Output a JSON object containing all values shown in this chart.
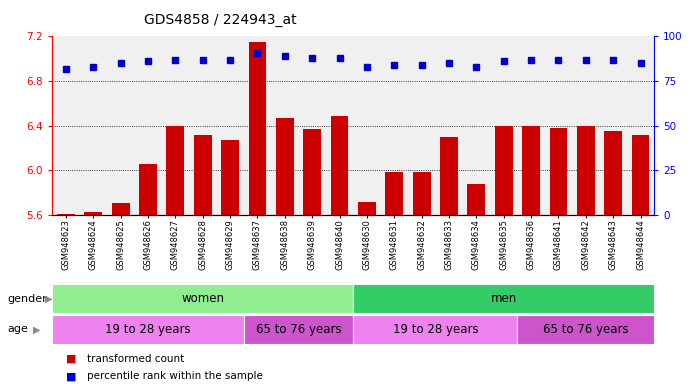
{
  "title": "GDS4858 / 224943_at",
  "samples": [
    "GSM948623",
    "GSM948624",
    "GSM948625",
    "GSM948626",
    "GSM948627",
    "GSM948628",
    "GSM948629",
    "GSM948637",
    "GSM948638",
    "GSM948639",
    "GSM948640",
    "GSM948630",
    "GSM948631",
    "GSM948632",
    "GSM948633",
    "GSM948634",
    "GSM948635",
    "GSM948636",
    "GSM948641",
    "GSM948642",
    "GSM948643",
    "GSM948644"
  ],
  "bar_values": [
    5.61,
    5.63,
    5.71,
    6.06,
    6.4,
    6.32,
    6.27,
    7.15,
    6.47,
    6.37,
    6.49,
    5.72,
    5.99,
    5.99,
    6.3,
    5.88,
    6.4,
    6.4,
    6.38,
    6.4,
    6.35,
    6.32
  ],
  "dot_values": [
    82,
    83,
    85,
    86,
    87,
    87,
    87,
    91,
    89,
    88,
    88,
    83,
    84,
    84,
    85,
    83,
    86,
    87,
    87,
    87,
    87,
    85
  ],
  "bar_color": "#cc0000",
  "dot_color": "#0000cc",
  "ylim_left": [
    5.6,
    7.2
  ],
  "ylim_right": [
    0,
    100
  ],
  "yticks_left": [
    5.6,
    6.0,
    6.4,
    6.8,
    7.2
  ],
  "yticks_right": [
    0,
    25,
    50,
    75,
    100
  ],
  "grid_values": [
    6.0,
    6.4,
    6.8
  ],
  "gender_groups": [
    {
      "label": "women",
      "start": 0,
      "end": 11,
      "color": "#90ee90"
    },
    {
      "label": "men",
      "start": 11,
      "end": 22,
      "color": "#33cc66"
    }
  ],
  "age_groups": [
    {
      "label": "19 to 28 years",
      "start": 0,
      "end": 7,
      "color": "#ee82ee"
    },
    {
      "label": "65 to 76 years",
      "start": 7,
      "end": 11,
      "color": "#cc55cc"
    },
    {
      "label": "19 to 28 years",
      "start": 11,
      "end": 17,
      "color": "#ee82ee"
    },
    {
      "label": "65 to 76 years",
      "start": 17,
      "end": 22,
      "color": "#cc55cc"
    }
  ],
  "legend_bar_label": "transformed count",
  "legend_dot_label": "percentile rank within the sample",
  "background_color": "#ffffff",
  "plot_bg_color": "#f0f0f0",
  "bar_base": 5.6,
  "n_samples": 22
}
